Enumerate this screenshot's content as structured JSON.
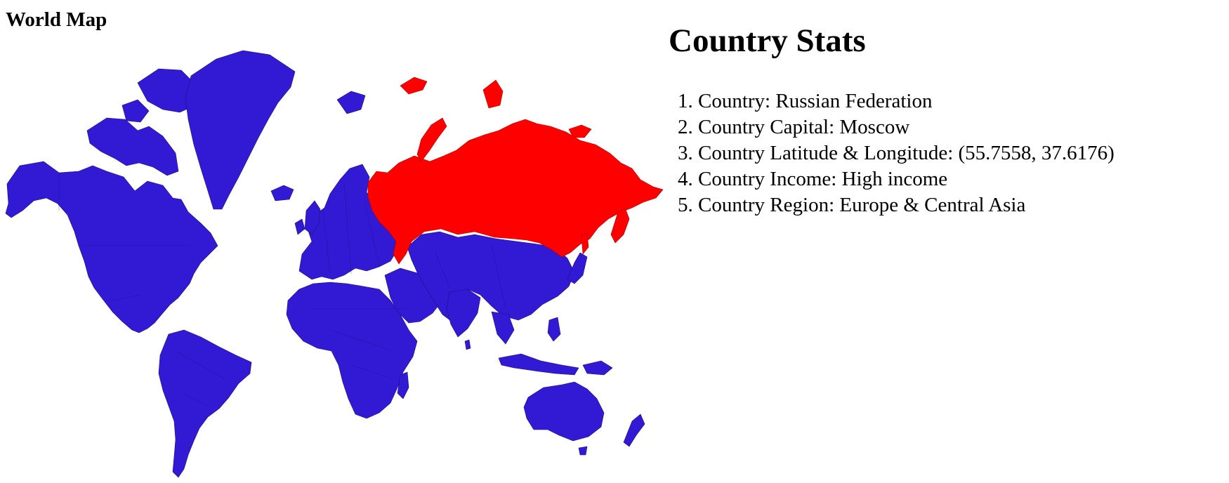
{
  "map": {
    "title": "World Map",
    "default_fill": "#3219d3",
    "highlight_fill": "#ff0000",
    "selected_country": "Russian Federation"
  },
  "stats": {
    "title": "Country Stats",
    "items": [
      "Country: Russian Federation",
      "Country Capital: Moscow",
      "Country Latitude & Longitude: (55.7558, 37.6176)",
      "Country Income: High income",
      "Country Region: Europe & Central Asia"
    ]
  }
}
